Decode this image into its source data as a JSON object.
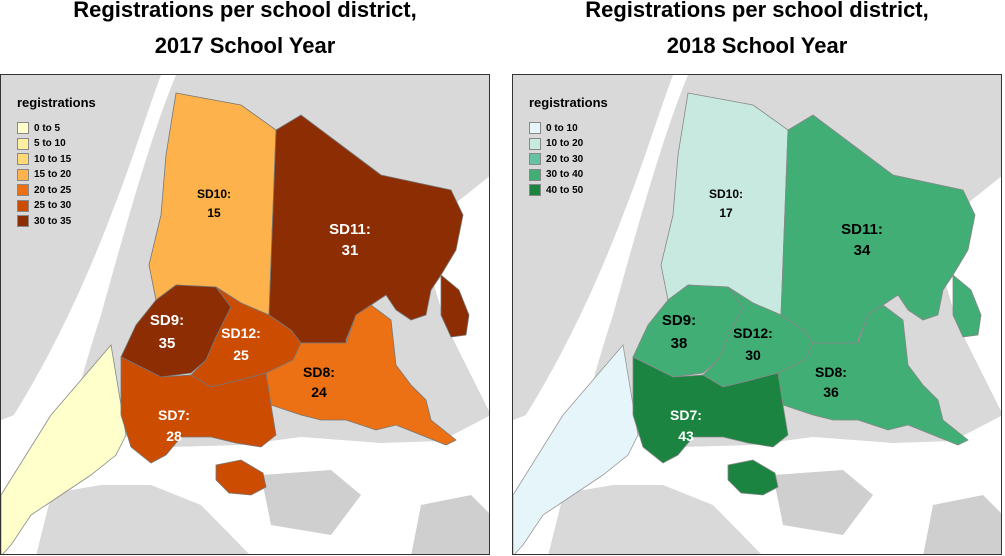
{
  "maps": [
    {
      "title_line1": "Registrations per school district,",
      "title_line2": "2017 School Year",
      "legend": {
        "title": "registrations",
        "items": [
          {
            "label": "0 to 5",
            "color": "#ffffcc"
          },
          {
            "label": "5 to 10",
            "color": "#ffeda0"
          },
          {
            "label": "10 to 15",
            "color": "#fed976"
          },
          {
            "label": "15 to 20",
            "color": "#feb24c"
          },
          {
            "label": "20 to 25",
            "color": "#ec7014"
          },
          {
            "label": "25 to 30",
            "color": "#cc4c02"
          },
          {
            "label": "30 to 35",
            "color": "#8c2d04"
          }
        ]
      },
      "districts": [
        {
          "id": "SD7",
          "name": "SD7:",
          "value": "28",
          "color": "#cc4c02"
        },
        {
          "id": "SD8",
          "name": "SD8:",
          "value": "24",
          "color": "#ec7014"
        },
        {
          "id": "SD9",
          "name": "SD9:",
          "value": "35",
          "color": "#8c2d04"
        },
        {
          "id": "SD10",
          "name": "SD10:",
          "value": "15",
          "color": "#feb24c"
        },
        {
          "id": "SD11",
          "name": "SD11:",
          "value": "31",
          "color": "#8c2d04"
        },
        {
          "id": "SD12",
          "name": "SD12:",
          "value": "25",
          "color": "#cc4c02"
        },
        {
          "id": "manhattan",
          "color": "#ffffcc"
        }
      ]
    },
    {
      "title_line1": "Registrations per school district,",
      "title_line2": "2018 School Year",
      "legend": {
        "title": "registrations",
        "items": [
          {
            "label": "0 to 10",
            "color": "#e5f5f9"
          },
          {
            "label": "10 to 20",
            "color": "#c7e9e0"
          },
          {
            "label": "20 to 30",
            "color": "#66c2a4"
          },
          {
            "label": "30 to 40",
            "color": "#41ae76"
          },
          {
            "label": "40 to 50",
            "color": "#1a8440"
          }
        ]
      },
      "districts": [
        {
          "id": "SD7",
          "name": "SD7:",
          "value": "43",
          "color": "#1a8440"
        },
        {
          "id": "SD8",
          "name": "SD8:",
          "value": "36",
          "color": "#41ae76"
        },
        {
          "id": "SD9",
          "name": "SD9:",
          "value": "38",
          "color": "#41ae76"
        },
        {
          "id": "SD10",
          "name": "SD10:",
          "value": "17",
          "color": "#c7e9e0"
        },
        {
          "id": "SD11",
          "name": "SD11:",
          "value": "34",
          "color": "#41ae76"
        },
        {
          "id": "SD12",
          "name": "SD12:",
          "value": "30",
          "color": "#41ae76"
        },
        {
          "id": "manhattan",
          "color": "#e5f5f9"
        }
      ]
    }
  ]
}
